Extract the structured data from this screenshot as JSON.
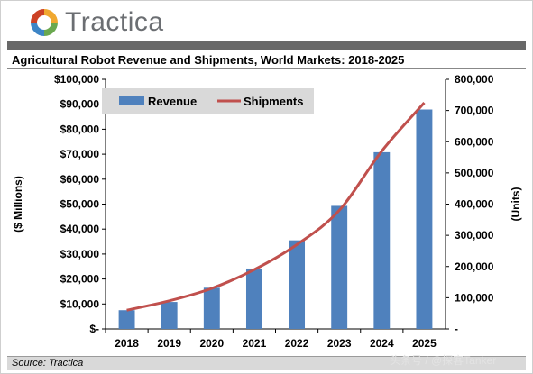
{
  "logo": {
    "text": "Tractica"
  },
  "colors": {
    "bar": "#4f81bd",
    "line": "#c0504d",
    "header_band": "#686868",
    "legend_bg": "#d9d9d9"
  },
  "source": "Source: Tractica",
  "watermark": "头条号 / @探客Tanker",
  "chart_data": {
    "type": "bar",
    "title": "Agricultural Robot Revenue and Shipments, World Markets: 2018-2025",
    "categories": [
      "2018",
      "2019",
      "2020",
      "2021",
      "2022",
      "2023",
      "2024",
      "2025"
    ],
    "series": [
      {
        "name": "Revenue",
        "type": "bar",
        "axis": "left",
        "values": [
          7500,
          10800,
          16500,
          24200,
          35500,
          49300,
          70800,
          87900
        ]
      },
      {
        "name": "Shipments",
        "type": "line",
        "axis": "right",
        "values": [
          60000,
          90000,
          130000,
          190000,
          270000,
          380000,
          570000,
          725000
        ]
      }
    ],
    "ylabel": "($ Millions)",
    "y2label": "(Units)",
    "ylim": [
      0,
      100000
    ],
    "y2lim": [
      0,
      800000
    ],
    "yticks": [
      "$-",
      "$10,000",
      "$20,000",
      "$30,000",
      "$40,000",
      "$50,000",
      "$60,000",
      "$70,000",
      "$80,000",
      "$90,000",
      "$100,000"
    ],
    "y2ticks": [
      "-",
      "100,000",
      "200,000",
      "300,000",
      "400,000",
      "500,000",
      "600,000",
      "700,000",
      "800,000"
    ],
    "grid": false,
    "legend": {
      "placement": "top-left",
      "entries": [
        "Revenue",
        "Shipments"
      ]
    }
  }
}
